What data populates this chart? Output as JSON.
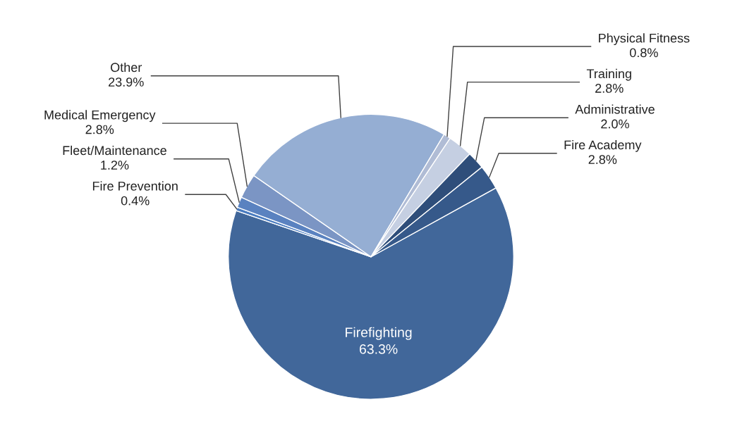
{
  "chart_data": {
    "type": "pie",
    "categories": [
      "Firefighting",
      "Fire Prevention",
      "Fleet/Maintenance",
      "Medical Emergency",
      "Other",
      "Physical Fitness",
      "Training",
      "Administrative",
      "Fire Academy"
    ],
    "values": [
      63.3,
      0.4,
      1.2,
      2.8,
      23.9,
      0.8,
      2.8,
      2.0,
      2.8
    ],
    "value_labels": [
      "63.3%",
      "0.4%",
      "1.2%",
      "2.8%",
      "23.9%",
      "0.8%",
      "2.8%",
      "2.0%",
      "2.8%"
    ],
    "colors": [
      "#41679a",
      "#4a7cc0",
      "#5a82c0",
      "#7b95c4",
      "#95aed3",
      "#b0bcd5",
      "#c5cfe2",
      "#2f4e7a",
      "#36598a"
    ]
  }
}
